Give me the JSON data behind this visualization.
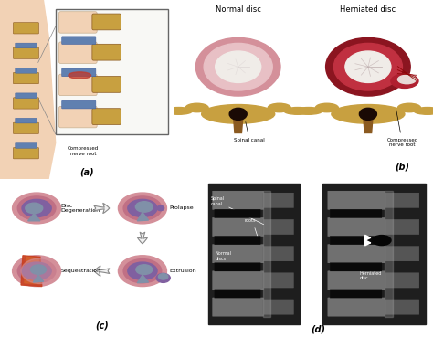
{
  "bg_color": "#ffffff",
  "panels": {
    "a_label": "(a)",
    "b_label": "(b)",
    "c_label": "(c)",
    "d_label": "(d)"
  },
  "panel_b": {
    "left_title": "Normal disc",
    "right_title": "Herniated disc",
    "left_label": "Spinal canal",
    "right_label": "Compressed\nnerve root"
  },
  "colors": {
    "skin_light": "#f2d2b5",
    "skin_dark": "#e8b890",
    "bone_gold": "#c8a040",
    "bone_light": "#d4b060",
    "bone_dark": "#8b5a20",
    "disc_blue": "#6080b0",
    "disc_blue_dark": "#4060a0",
    "disc_pink_outer": "#d4909a",
    "disc_pink_mid": "#e8c0c5",
    "disc_white": "#f0ece8",
    "disc_red": "#c03040",
    "disc_red_dark": "#8b1520",
    "mri_bg": "#222222",
    "mri_bone_light": "#888888",
    "mri_bone_mid": "#555555",
    "mri_disc_dark": "#111111",
    "mri_csf": "#aaaaaa",
    "ann_white": "#ffffff",
    "stage_pink_outer": "#d4909a",
    "stage_pink_mid": "#c07085",
    "stage_purple": "#8060a0",
    "stage_gray_blue": "#8090a8",
    "stage_orange": "#d4602a",
    "stage_red_orange": "#c84020",
    "arrow_fill": "#f0f0f0",
    "arrow_edge": "#888888"
  }
}
